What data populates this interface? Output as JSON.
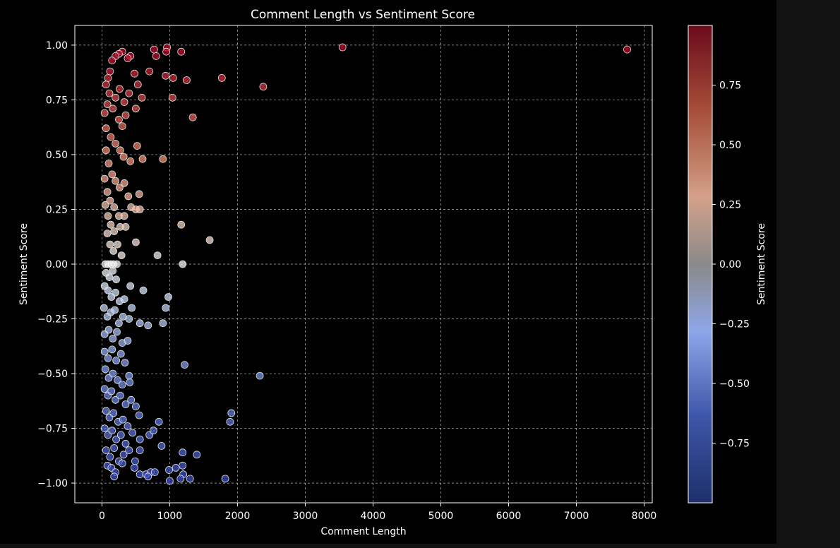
{
  "chart_data": {
    "type": "scatter",
    "title": "Comment Length vs Sentiment Score",
    "xlabel": "Comment Length",
    "ylabel": "Sentiment Score",
    "xlim": [
      -400,
      8120
    ],
    "ylim": [
      -1.09,
      1.09
    ],
    "x_ticks": [
      0,
      1000,
      2000,
      3000,
      4000,
      5000,
      6000,
      7000,
      8000
    ],
    "x_tick_labels": [
      "0",
      "1000",
      "2000",
      "3000",
      "4000",
      "5000",
      "6000",
      "7000",
      "8000"
    ],
    "y_ticks": [
      -1.0,
      -0.75,
      -0.5,
      -0.25,
      0.0,
      0.25,
      0.5,
      0.75,
      1.0
    ],
    "y_tick_labels": [
      "−1.00",
      "−0.75",
      "−0.50",
      "−0.25",
      "0.00",
      "0.25",
      "0.50",
      "0.75",
      "1.00"
    ],
    "grid": true,
    "colormap": "coolwarm",
    "colorbar": {
      "label": "Sentiment Score",
      "range": [
        -1.0,
        1.0
      ],
      "ticks": [
        -0.75,
        -0.5,
        -0.25,
        0.0,
        0.25,
        0.5,
        0.75
      ],
      "tick_labels": [
        "−0.75",
        "−0.50",
        "−0.25",
        "0.00",
        "0.25",
        "0.50",
        "0.75"
      ],
      "colors": [
        "#1f2f6b",
        "#3e56a8",
        "#8ea6e8",
        "#8a8a8a",
        "#d4a08a",
        "#a5503a",
        "#6b0a1c"
      ]
    },
    "points": [
      [
        3550,
        0.99
      ],
      [
        7750,
        0.98
      ],
      [
        2380,
        0.81
      ],
      [
        1770,
        0.85
      ],
      [
        1340,
        0.67
      ],
      [
        1250,
        0.84
      ],
      [
        1170,
        0.97
      ],
      [
        960,
        0.99
      ],
      [
        950,
        0.97
      ],
      [
        1050,
        0.85
      ],
      [
        940,
        0.86
      ],
      [
        1040,
        0.76
      ],
      [
        800,
        0.95
      ],
      [
        770,
        0.98
      ],
      [
        700,
        0.88
      ],
      [
        530,
        0.82
      ],
      [
        500,
        0.71
      ],
      [
        590,
        0.76
      ],
      [
        480,
        0.87
      ],
      [
        420,
        0.95
      ],
      [
        380,
        0.94
      ],
      [
        300,
        0.97
      ],
      [
        250,
        0.96
      ],
      [
        200,
        0.95
      ],
      [
        150,
        0.93
      ],
      [
        120,
        0.88
      ],
      [
        90,
        0.85
      ],
      [
        60,
        0.82
      ],
      [
        110,
        0.78
      ],
      [
        200,
        0.76
      ],
      [
        260,
        0.8
      ],
      [
        330,
        0.74
      ],
      [
        400,
        0.78
      ],
      [
        350,
        0.68
      ],
      [
        300,
        0.63
      ],
      [
        250,
        0.66
      ],
      [
        160,
        0.71
      ],
      [
        80,
        0.73
      ],
      [
        40,
        0.69
      ],
      [
        60,
        0.62
      ],
      [
        130,
        0.58
      ],
      [
        200,
        0.55
      ],
      [
        270,
        0.52
      ],
      [
        320,
        0.49
      ],
      [
        420,
        0.47
      ],
      [
        520,
        0.54
      ],
      [
        600,
        0.48
      ],
      [
        900,
        0.48
      ],
      [
        60,
        0.52
      ],
      [
        100,
        0.46
      ],
      [
        150,
        0.41
      ],
      [
        200,
        0.38
      ],
      [
        260,
        0.35
      ],
      [
        330,
        0.37
      ],
      [
        390,
        0.31
      ],
      [
        550,
        0.32
      ],
      [
        40,
        0.39
      ],
      [
        80,
        0.33
      ],
      [
        120,
        0.29
      ],
      [
        180,
        0.26
      ],
      [
        250,
        0.22
      ],
      [
        330,
        0.22
      ],
      [
        430,
        0.26
      ],
      [
        500,
        0.25
      ],
      [
        560,
        0.25
      ],
      [
        50,
        0.27
      ],
      [
        90,
        0.22
      ],
      [
        130,
        0.18
      ],
      [
        180,
        0.15
      ],
      [
        270,
        0.17
      ],
      [
        350,
        0.17
      ],
      [
        1170,
        0.18
      ],
      [
        1590,
        0.11
      ],
      [
        500,
        0.1
      ],
      [
        80,
        0.14
      ],
      [
        120,
        0.09
      ],
      [
        170,
        0.06
      ],
      [
        230,
        0.09
      ],
      [
        290,
        0.04
      ],
      [
        820,
        0.04
      ],
      [
        50,
        0.0
      ],
      [
        90,
        0.0
      ],
      [
        130,
        0.0
      ],
      [
        170,
        0.0
      ],
      [
        220,
        0.0
      ],
      [
        1190,
        0.0
      ],
      [
        60,
        -0.04
      ],
      [
        110,
        -0.06
      ],
      [
        160,
        -0.03
      ],
      [
        210,
        -0.07
      ],
      [
        40,
        -0.1
      ],
      [
        90,
        -0.12
      ],
      [
        140,
        -0.15
      ],
      [
        200,
        -0.13
      ],
      [
        260,
        -0.17
      ],
      [
        330,
        -0.16
      ],
      [
        420,
        -0.1
      ],
      [
        610,
        -0.12
      ],
      [
        980,
        -0.15
      ],
      [
        940,
        -0.2
      ],
      [
        30,
        -0.2
      ],
      [
        80,
        -0.24
      ],
      [
        130,
        -0.22
      ],
      [
        190,
        -0.21
      ],
      [
        250,
        -0.27
      ],
      [
        310,
        -0.24
      ],
      [
        400,
        -0.25
      ],
      [
        560,
        -0.27
      ],
      [
        680,
        -0.28
      ],
      [
        900,
        -0.27
      ],
      [
        40,
        -0.32
      ],
      [
        100,
        -0.3
      ],
      [
        160,
        -0.34
      ],
      [
        220,
        -0.31
      ],
      [
        300,
        -0.36
      ],
      [
        380,
        -0.35
      ],
      [
        440,
        -0.2
      ],
      [
        40,
        -0.4
      ],
      [
        90,
        -0.43
      ],
      [
        150,
        -0.39
      ],
      [
        210,
        -0.44
      ],
      [
        280,
        -0.41
      ],
      [
        340,
        -0.45
      ],
      [
        1220,
        -0.46
      ],
      [
        2330,
        -0.51
      ],
      [
        50,
        -0.48
      ],
      [
        100,
        -0.52
      ],
      [
        160,
        -0.5
      ],
      [
        230,
        -0.53
      ],
      [
        300,
        -0.55
      ],
      [
        400,
        -0.51
      ],
      [
        410,
        -0.54
      ],
      [
        40,
        -0.57
      ],
      [
        90,
        -0.6
      ],
      [
        140,
        -0.58
      ],
      [
        200,
        -0.62
      ],
      [
        270,
        -0.6
      ],
      [
        350,
        -0.64
      ],
      [
        430,
        -0.62
      ],
      [
        500,
        -0.65
      ],
      [
        60,
        -0.67
      ],
      [
        110,
        -0.7
      ],
      [
        170,
        -0.68
      ],
      [
        240,
        -0.72
      ],
      [
        310,
        -0.71
      ],
      [
        380,
        -0.74
      ],
      [
        550,
        -0.69
      ],
      [
        840,
        -0.72
      ],
      [
        1910,
        -0.68
      ],
      [
        1890,
        -0.72
      ],
      [
        40,
        -0.75
      ],
      [
        90,
        -0.78
      ],
      [
        150,
        -0.76
      ],
      [
        210,
        -0.8
      ],
      [
        280,
        -0.78
      ],
      [
        350,
        -0.82
      ],
      [
        450,
        -0.77
      ],
      [
        560,
        -0.8
      ],
      [
        700,
        -0.78
      ],
      [
        760,
        -0.76
      ],
      [
        60,
        -0.85
      ],
      [
        120,
        -0.88
      ],
      [
        180,
        -0.84
      ],
      [
        250,
        -0.9
      ],
      [
        320,
        -0.87
      ],
      [
        400,
        -0.85
      ],
      [
        490,
        -0.9
      ],
      [
        560,
        -0.85
      ],
      [
        880,
        -0.83
      ],
      [
        1190,
        -0.86
      ],
      [
        1400,
        -0.87
      ],
      [
        80,
        -0.92
      ],
      [
        140,
        -0.93
      ],
      [
        200,
        -0.95
      ],
      [
        300,
        -0.91
      ],
      [
        480,
        -0.93
      ],
      [
        560,
        -0.96
      ],
      [
        650,
        -0.96
      ],
      [
        720,
        -0.95
      ],
      [
        780,
        -0.95
      ],
      [
        990,
        -0.94
      ],
      [
        1090,
        -0.93
      ],
      [
        1190,
        -0.92
      ],
      [
        1200,
        -0.96
      ],
      [
        1000,
        -0.99
      ],
      [
        1160,
        -0.98
      ],
      [
        1300,
        -0.98
      ],
      [
        1820,
        -0.98
      ],
      [
        180,
        -0.97
      ],
      [
        680,
        -0.97
      ]
    ]
  }
}
